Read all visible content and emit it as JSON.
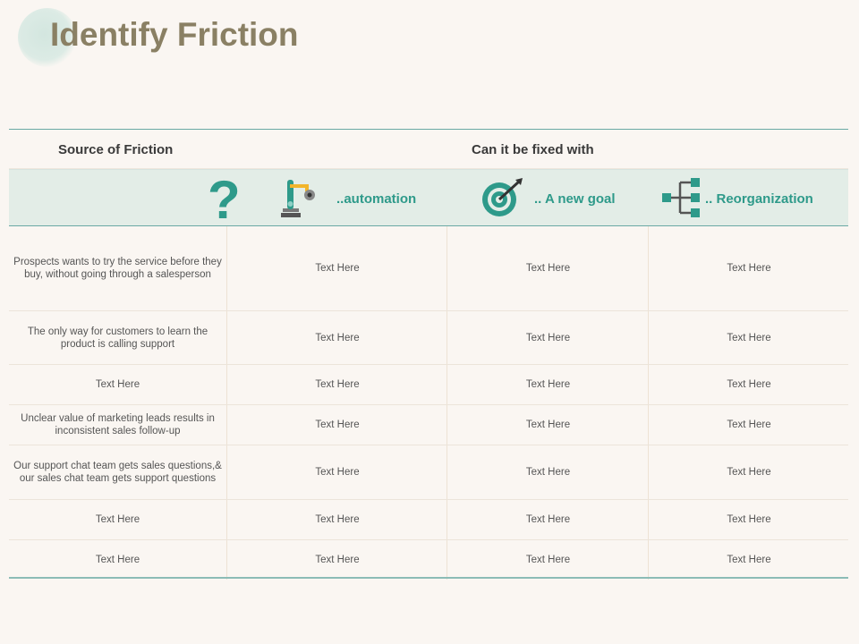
{
  "title": "Identify Friction",
  "header": {
    "source": "Source of Friction",
    "fixed": "Can it be fixed with"
  },
  "icons": {
    "question": "?",
    "automation_label": "..automation",
    "goal_label": ".. A new goal",
    "reorg_label": ".. Reorganization"
  },
  "rows": [
    {
      "source": "Prospects wants to try the service before they buy, without going through a salesperson",
      "c1": "Text Here",
      "c2": "Text Here",
      "c3": "Text Here"
    },
    {
      "source": "The only way for customers to learn the product is calling support",
      "c1": "Text Here",
      "c2": "Text Here",
      "c3": "Text Here"
    },
    {
      "source": "Text Here",
      "c1": "Text Here",
      "c2": "Text Here",
      "c3": "Text Here"
    },
    {
      "source": "Unclear value of marketing leads results in inconsistent sales follow-up",
      "c1": "Text Here",
      "c2": "Text Here",
      "c3": "Text Here"
    },
    {
      "source": "Our support chat team gets sales questions,& our sales chat team gets support questions",
      "c1": "Text Here",
      "c2": "Text Here",
      "c3": "Text Here"
    },
    {
      "source": "Text Here",
      "c1": "Text Here",
      "c2": "Text Here",
      "c3": "Text Here"
    },
    {
      "source": "Text Here",
      "c1": "Text Here",
      "c2": "Text Here",
      "c3": "Text Here"
    }
  ],
  "colors": {
    "accent": "#2e9a8a",
    "title": "#8a8064",
    "background": "#faf6f2",
    "icon_band": "#e3ede7"
  }
}
